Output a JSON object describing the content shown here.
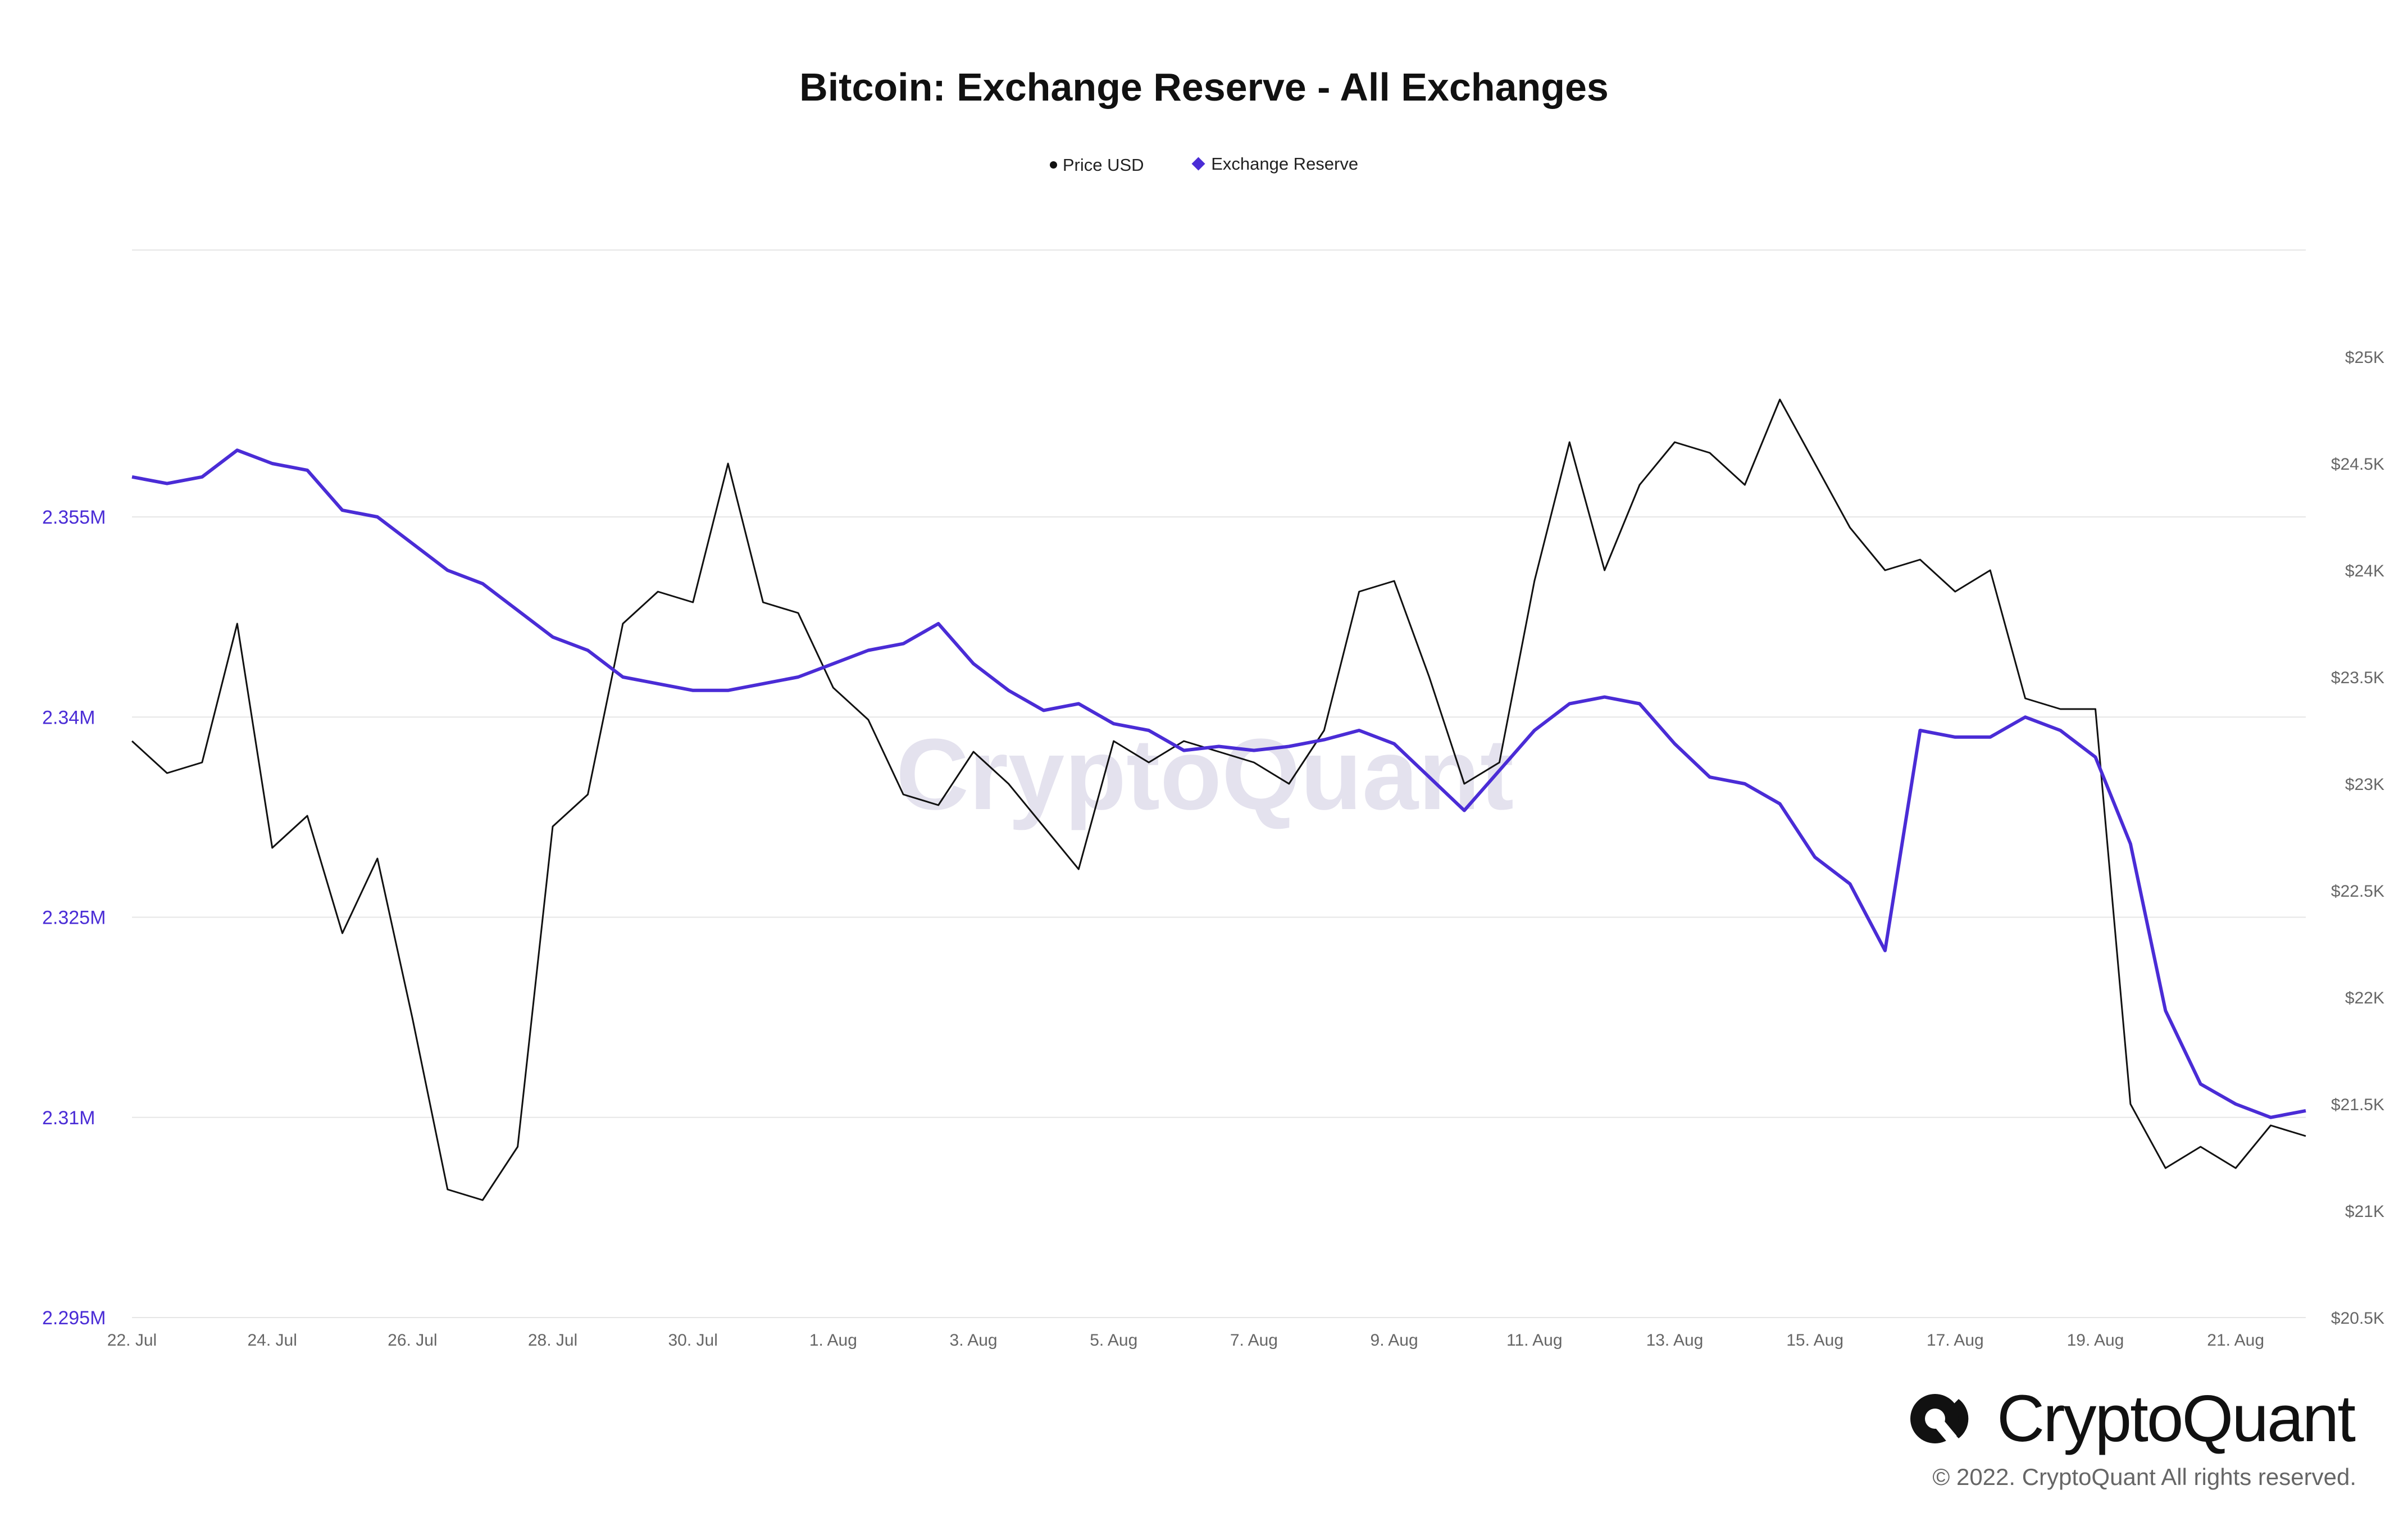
{
  "chart_data": {
    "type": "line",
    "title": "Bitcoin: Exchange Reserve - All Exchanges",
    "x_range": [
      "2022-07-22",
      "2022-08-22"
    ],
    "x_ticks": [
      "22. Jul",
      "24. Jul",
      "26. Jul",
      "28. Jul",
      "30. Jul",
      "1. Aug",
      "3. Aug",
      "5. Aug",
      "7. Aug",
      "9. Aug",
      "11. Aug",
      "13. Aug",
      "15. Aug",
      "17. Aug",
      "19. Aug",
      "21. Aug"
    ],
    "y_left": {
      "range": [
        2295000,
        2375000
      ],
      "ticks": [
        "2.295M",
        "2.31M",
        "2.325M",
        "2.34M",
        "2.355M"
      ],
      "tick_values": [
        2295000,
        2310000,
        2325000,
        2340000,
        2355000
      ]
    },
    "y_right": {
      "range": [
        20500,
        25500
      ],
      "ticks": [
        "$20.5K",
        "$21K",
        "$21.5K",
        "$22K",
        "$22.5K",
        "$23K",
        "$23.5K",
        "$24K",
        "$24.5K",
        "$25K"
      ],
      "tick_values": [
        20500,
        21000,
        21500,
        22000,
        22500,
        23000,
        23500,
        24000,
        24500,
        25000
      ]
    },
    "grid": true,
    "legend_position": "top-center",
    "series": [
      {
        "name": "Price USD",
        "axis": "right",
        "color": "#111111",
        "points": [
          [
            "2022-07-22",
            23200
          ],
          [
            "2022-07-22T12:00",
            23050
          ],
          [
            "2022-07-23",
            23100
          ],
          [
            "2022-07-23T12:00",
            23750
          ],
          [
            "2022-07-24",
            22700
          ],
          [
            "2022-07-24T12:00",
            22850
          ],
          [
            "2022-07-25",
            22300
          ],
          [
            "2022-07-25T12:00",
            22650
          ],
          [
            "2022-07-26",
            21900
          ],
          [
            "2022-07-26T12:00",
            21100
          ],
          [
            "2022-07-27",
            21050
          ],
          [
            "2022-07-27T12:00",
            21300
          ],
          [
            "2022-07-28",
            22800
          ],
          [
            "2022-07-28T12:00",
            22950
          ],
          [
            "2022-07-29",
            23750
          ],
          [
            "2022-07-29T12:00",
            23900
          ],
          [
            "2022-07-30",
            23850
          ],
          [
            "2022-07-30T12:00",
            24500
          ],
          [
            "2022-07-31",
            23850
          ],
          [
            "2022-07-31T12:00",
            23800
          ],
          [
            "2022-08-01",
            23450
          ],
          [
            "2022-08-01T12:00",
            23300
          ],
          [
            "2022-08-02",
            22950
          ],
          [
            "2022-08-02T12:00",
            22900
          ],
          [
            "2022-08-03",
            23150
          ],
          [
            "2022-08-03T12:00",
            23000
          ],
          [
            "2022-08-04",
            22800
          ],
          [
            "2022-08-04T12:00",
            22600
          ],
          [
            "2022-08-05",
            23200
          ],
          [
            "2022-08-05T12:00",
            23100
          ],
          [
            "2022-08-06",
            23200
          ],
          [
            "2022-08-06T12:00",
            23150
          ],
          [
            "2022-08-07",
            23100
          ],
          [
            "2022-08-07T12:00",
            23000
          ],
          [
            "2022-08-08",
            23250
          ],
          [
            "2022-08-08T12:00",
            23900
          ],
          [
            "2022-08-09",
            23950
          ],
          [
            "2022-08-09T12:00",
            23500
          ],
          [
            "2022-08-10",
            23000
          ],
          [
            "2022-08-10T12:00",
            23100
          ],
          [
            "2022-08-11",
            23950
          ],
          [
            "2022-08-11T12:00",
            24600
          ],
          [
            "2022-08-12",
            24000
          ],
          [
            "2022-08-12T12:00",
            24400
          ],
          [
            "2022-08-13",
            24600
          ],
          [
            "2022-08-13T12:00",
            24550
          ],
          [
            "2022-08-14",
            24400
          ],
          [
            "2022-08-14T12:00",
            24800
          ],
          [
            "2022-08-15",
            24500
          ],
          [
            "2022-08-15T12:00",
            24200
          ],
          [
            "2022-08-16",
            24000
          ],
          [
            "2022-08-16T12:00",
            24050
          ],
          [
            "2022-08-17",
            23900
          ],
          [
            "2022-08-17T12:00",
            24000
          ],
          [
            "2022-08-18",
            23400
          ],
          [
            "2022-08-18T12:00",
            23350
          ],
          [
            "2022-08-19",
            23350
          ],
          [
            "2022-08-19T12:00",
            21500
          ],
          [
            "2022-08-20",
            21200
          ],
          [
            "2022-08-20T12:00",
            21300
          ],
          [
            "2022-08-21",
            21200
          ],
          [
            "2022-08-21T12:00",
            21400
          ],
          [
            "2022-08-22",
            21350
          ]
        ]
      },
      {
        "name": "Exchange Reserve",
        "axis": "left",
        "color": "#4a2cd6",
        "points": [
          [
            "2022-07-22",
            2358000
          ],
          [
            "2022-07-22T12:00",
            2357500
          ],
          [
            "2022-07-23",
            2358000
          ],
          [
            "2022-07-23T12:00",
            2360000
          ],
          [
            "2022-07-24",
            2359000
          ],
          [
            "2022-07-24T12:00",
            2358500
          ],
          [
            "2022-07-25",
            2355500
          ],
          [
            "2022-07-25T12:00",
            2355000
          ],
          [
            "2022-07-26",
            2353000
          ],
          [
            "2022-07-26T12:00",
            2351000
          ],
          [
            "2022-07-27",
            2350000
          ],
          [
            "2022-07-27T12:00",
            2348000
          ],
          [
            "2022-07-28",
            2346000
          ],
          [
            "2022-07-28T12:00",
            2345000
          ],
          [
            "2022-07-29",
            2343000
          ],
          [
            "2022-07-29T12:00",
            2342500
          ],
          [
            "2022-07-30",
            2342000
          ],
          [
            "2022-07-30T12:00",
            2342000
          ],
          [
            "2022-07-31",
            2342500
          ],
          [
            "2022-07-31T12:00",
            2343000
          ],
          [
            "2022-08-01",
            2344000
          ],
          [
            "2022-08-01T12:00",
            2345000
          ],
          [
            "2022-08-02",
            2345500
          ],
          [
            "2022-08-02T12:00",
            2347000
          ],
          [
            "2022-08-03",
            2344000
          ],
          [
            "2022-08-03T12:00",
            2342000
          ],
          [
            "2022-08-04",
            2340500
          ],
          [
            "2022-08-04T12:00",
            2341000
          ],
          [
            "2022-08-05",
            2339500
          ],
          [
            "2022-08-05T12:00",
            2339000
          ],
          [
            "2022-08-06",
            2337500
          ],
          [
            "2022-08-06T12:00",
            2337800
          ],
          [
            "2022-08-07",
            2337500
          ],
          [
            "2022-08-07T12:00",
            2337800
          ],
          [
            "2022-08-08",
            2338300
          ],
          [
            "2022-08-08T12:00",
            2339000
          ],
          [
            "2022-08-09",
            2338000
          ],
          [
            "2022-08-09T12:00",
            2335500
          ],
          [
            "2022-08-10",
            2333000
          ],
          [
            "2022-08-10T12:00",
            2336000
          ],
          [
            "2022-08-11",
            2339000
          ],
          [
            "2022-08-11T12:00",
            2341000
          ],
          [
            "2022-08-12",
            2341500
          ],
          [
            "2022-08-12T12:00",
            2341000
          ],
          [
            "2022-08-13",
            2338000
          ],
          [
            "2022-08-13T12:00",
            2335500
          ],
          [
            "2022-08-14",
            2335000
          ],
          [
            "2022-08-14T12:00",
            2333500
          ],
          [
            "2022-08-15",
            2329500
          ],
          [
            "2022-08-15T12:00",
            2327500
          ],
          [
            "2022-08-16",
            2322500
          ],
          [
            "2022-08-16T12:00",
            2339000
          ],
          [
            "2022-08-17",
            2338500
          ],
          [
            "2022-08-17T12:00",
            2338500
          ],
          [
            "2022-08-18",
            2340000
          ],
          [
            "2022-08-18T12:00",
            2339000
          ],
          [
            "2022-08-19",
            2337000
          ],
          [
            "2022-08-19T12:00",
            2330500
          ],
          [
            "2022-08-20",
            2318000
          ],
          [
            "2022-08-20T12:00",
            2312500
          ],
          [
            "2022-08-21",
            2311000
          ],
          [
            "2022-08-21T12:00",
            2310000
          ],
          [
            "2022-08-22",
            2310500
          ]
        ]
      }
    ]
  },
  "watermark": "CryptoQuant",
  "brand": {
    "logo_text": "CryptoQuant",
    "copyright": "© 2022. CryptoQuant All rights reserved."
  },
  "colors": {
    "reserve": "#4a2cd6",
    "price": "#111111",
    "axis_text": "#666666",
    "grid": "#e6e6e6",
    "watermark": "#e4e2ee"
  }
}
